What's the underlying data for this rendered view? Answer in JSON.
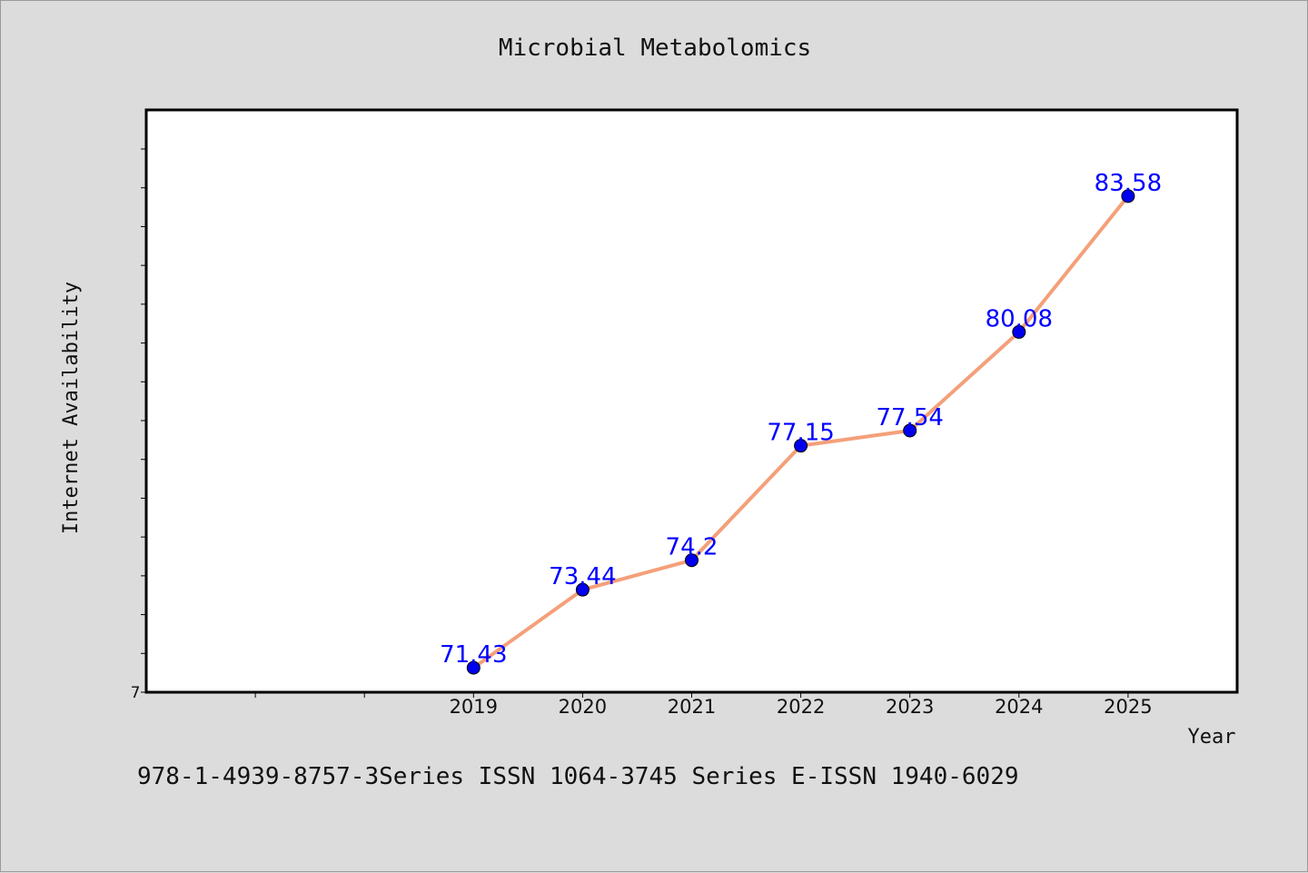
{
  "chart_data": {
    "type": "line",
    "title": "Microbial Metabolomics",
    "xlabel": "Year",
    "ylabel": "Internet Availability",
    "categories": [
      "2019",
      "2020",
      "2021",
      "2022",
      "2023",
      "2024",
      "2025"
    ],
    "series": [
      {
        "values": [
          71.43,
          73.44,
          74.2,
          77.15,
          77.54,
          80.08,
          83.58
        ]
      }
    ],
    "data_labels": [
      "71.43",
      "73.44",
      "74.2",
      "77.15",
      "77.54",
      "80.08",
      "83.58"
    ],
    "x_range": [
      2016,
      2026
    ],
    "ylim": [
      70.8,
      85.8
    ],
    "y_origin_label": "7",
    "grid": false,
    "line_color": "#f4a07a",
    "marker_color": "#0000ee",
    "label_color": "#0000ff",
    "background_color": "#dcdcdc",
    "plot_background": "#ffffff"
  },
  "footer": "978-1-4939-8757-3Series ISSN 1064-3745 Series E-ISSN 1940-6029"
}
